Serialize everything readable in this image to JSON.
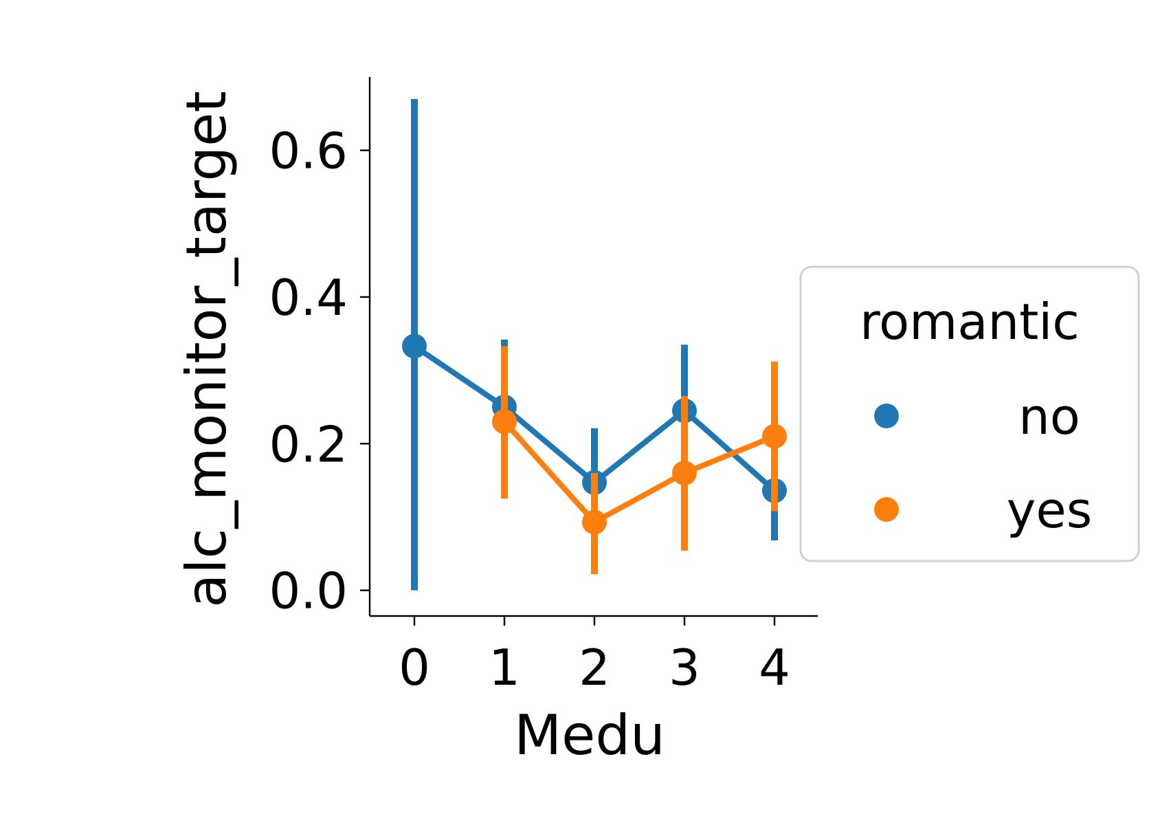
{
  "chart_data": {
    "type": "line",
    "xlabel": "Medu",
    "ylabel": "alc_monitor_target",
    "categories": [
      "0",
      "1",
      "2",
      "3",
      "4"
    ],
    "ylim": [
      -0.035,
      0.7
    ],
    "yticks": [
      "0.0",
      "0.2",
      "0.4",
      "0.6"
    ],
    "grid": false,
    "legend": {
      "title": "romantic",
      "placement": "right"
    },
    "series": [
      {
        "name": "no",
        "color": "#1f77b4",
        "values": [
          0.333,
          0.25,
          0.147,
          0.245,
          0.136
        ],
        "ci_low": [
          0.0,
          0.155,
          0.067,
          0.155,
          0.068
        ],
        "ci_high": [
          0.67,
          0.342,
          0.221,
          0.335,
          0.21
        ]
      },
      {
        "name": "yes",
        "color": "#ff7f0e",
        "values": [
          null,
          0.23,
          0.093,
          0.16,
          0.21
        ],
        "ci_low": [
          null,
          0.125,
          0.022,
          0.054,
          0.108
        ],
        "ci_high": [
          null,
          0.333,
          0.16,
          0.265,
          0.312
        ]
      }
    ]
  }
}
